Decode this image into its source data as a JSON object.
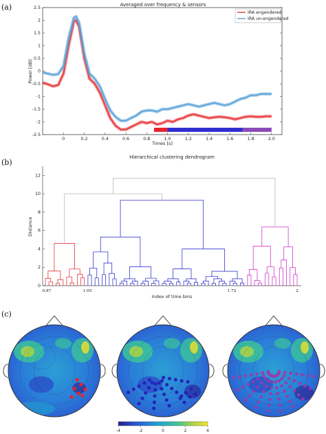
{
  "panel_a": {
    "label": "(a)",
    "chart_data": {
      "type": "line",
      "title": "Averaged over frequency & sensors",
      "xlabel": "Times [s]",
      "ylabel": "Power [dB]",
      "xlim": [
        -0.2,
        2.1
      ],
      "ylim": [
        -2.5,
        2.5
      ],
      "xticks": [
        "0",
        "0.2",
        "0.4",
        "0.6",
        "0.8",
        "1.0",
        "1.2",
        "1.4",
        "1.6",
        "1.8",
        "2.0"
      ],
      "yticks": [
        "-2.5",
        "-2",
        "-1.5",
        "-1",
        "-0.5",
        "0",
        "0.5",
        "1",
        "1.5",
        "2",
        "2.5"
      ],
      "legend_position": "top-right",
      "x": [
        -0.2,
        -0.15,
        -0.1,
        -0.05,
        0,
        0.05,
        0.1,
        0.12,
        0.15,
        0.2,
        0.25,
        0.3,
        0.35,
        0.4,
        0.45,
        0.5,
        0.55,
        0.6,
        0.65,
        0.7,
        0.75,
        0.8,
        0.85,
        0.9,
        0.95,
        1.0,
        1.05,
        1.1,
        1.15,
        1.2,
        1.25,
        1.3,
        1.35,
        1.4,
        1.45,
        1.5,
        1.55,
        1.6,
        1.65,
        1.7,
        1.75,
        1.8,
        1.85,
        1.9,
        1.95,
        2.0
      ],
      "series": [
        {
          "name": "IRA engendered",
          "color": "#e8373a",
          "values": [
            -0.45,
            -0.52,
            -0.6,
            -0.55,
            -0.1,
            1.0,
            1.95,
            2.0,
            1.75,
            0.5,
            -0.3,
            -0.5,
            -0.85,
            -1.35,
            -1.85,
            -2.15,
            -2.3,
            -2.3,
            -2.2,
            -2.1,
            -2.0,
            -2.05,
            -2.0,
            -2.1,
            -2.05,
            -1.95,
            -2.0,
            -1.9,
            -1.85,
            -1.75,
            -1.7,
            -1.75,
            -1.8,
            -1.85,
            -1.82,
            -1.8,
            -1.82,
            -1.85,
            -1.9,
            -1.85,
            -1.8,
            -1.78,
            -1.8,
            -1.8,
            -1.78,
            -1.78
          ]
        },
        {
          "name": "IRA un-engendered",
          "color": "#5aa3d8",
          "values": [
            -0.05,
            -0.1,
            -0.15,
            -0.12,
            0.2,
            1.3,
            2.1,
            2.15,
            1.9,
            0.7,
            -0.1,
            -0.3,
            -0.6,
            -1.1,
            -1.55,
            -1.8,
            -1.95,
            -1.95,
            -1.85,
            -1.75,
            -1.6,
            -1.55,
            -1.55,
            -1.6,
            -1.5,
            -1.5,
            -1.45,
            -1.4,
            -1.35,
            -1.3,
            -1.35,
            -1.4,
            -1.35,
            -1.3,
            -1.25,
            -1.3,
            -1.35,
            -1.3,
            -1.2,
            -1.1,
            -1.05,
            -0.95,
            -0.95,
            -0.9,
            -0.9,
            -0.9
          ]
        }
      ],
      "time_bar": [
        {
          "from": 0.87,
          "to": 1.0,
          "color": "#e8232a"
        },
        {
          "from": 1.0,
          "to": 1.72,
          "color": "#2f2fd0"
        },
        {
          "from": 1.72,
          "to": 2.0,
          "color": "#8a4bb8"
        }
      ]
    }
  },
  "panel_b": {
    "label": "(b)",
    "chart_data": {
      "type": "dendrogram",
      "title": "Hierarchical clustering dendrogram",
      "xlabel": "Index of time bins",
      "ylabel": "Distance",
      "ylim": [
        0,
        13
      ],
      "yticks": [
        "0",
        "2",
        "4",
        "6",
        "8",
        "10",
        "12"
      ],
      "xtick_labels": [
        "0.87",
        "1.05",
        "1.72",
        "2"
      ],
      "clusters": [
        {
          "color": "#e8373a",
          "leaf_count": 12,
          "merge_height": 4.6
        },
        {
          "color": "#3838d0",
          "leaf_count": 45,
          "merge_height": 9.3
        },
        {
          "color": "#d038d0",
          "leaf_count": 15,
          "merge_height": 6.4
        }
      ],
      "top_link_color": "#b8b8b8",
      "top_merges": [
        10.0,
        11.7,
        13.0
      ]
    }
  },
  "panel_c": {
    "label": "(c)",
    "colorbar_ticks": [
      "-4",
      "-2",
      "0",
      "2",
      "4"
    ],
    "topomaps": [
      {
        "markers": "red",
        "marker_color": "#e8232a"
      },
      {
        "markers": "blue",
        "marker_color": "#2323b8"
      },
      {
        "markers": "purple",
        "marker_color": "#9a3aa8"
      }
    ],
    "colormap": [
      "#2b1c8e",
      "#2a5bd8",
      "#22a3d0",
      "#3cc39a",
      "#a6d14a",
      "#f4e62a"
    ]
  }
}
